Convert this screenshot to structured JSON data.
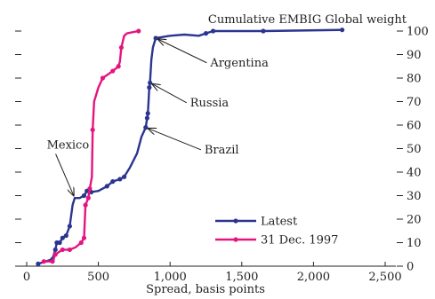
{
  "chart_data": {
    "type": "line",
    "title": "Cumulative EMBIG Global weight",
    "xlabel": "Spread, basis points",
    "ylabel": "",
    "xlim": [
      0,
      2500
    ],
    "ylim": [
      0,
      100
    ],
    "x_ticks": [
      0,
      500,
      1000,
      1500,
      2000,
      2500
    ],
    "x_tick_labels": [
      "0",
      "500",
      "1,000",
      "1,500",
      "2,000",
      "2,500"
    ],
    "y_ticks": [
      0,
      10,
      20,
      30,
      40,
      50,
      60,
      70,
      80,
      90,
      100
    ],
    "y_tick_labels": [
      "0",
      "10",
      "20",
      "30",
      "40",
      "50",
      "60",
      "70",
      "80",
      "90",
      "100"
    ],
    "y_axis_side": "right",
    "grid": false,
    "legend_position": "lower-right",
    "series": [
      {
        "name": "Latest",
        "color": "#2b3590",
        "points": [
          [
            80,
            1
          ],
          [
            180,
            3
          ],
          [
            200,
            7
          ],
          [
            210,
            10
          ],
          [
            230,
            10
          ],
          [
            250,
            12
          ],
          [
            275,
            13
          ],
          [
            300,
            17
          ],
          [
            320,
            26
          ],
          [
            335,
            29
          ],
          [
            370,
            29
          ],
          [
            400,
            30
          ],
          [
            420,
            32
          ],
          [
            450,
            31.5
          ],
          [
            500,
            32
          ],
          [
            560,
            34
          ],
          [
            600,
            36
          ],
          [
            650,
            37
          ],
          [
            680,
            38
          ],
          [
            720,
            42
          ],
          [
            770,
            48
          ],
          [
            800,
            55
          ],
          [
            830,
            59
          ],
          [
            840,
            63
          ],
          [
            845,
            65
          ],
          [
            850,
            70
          ],
          [
            855,
            76
          ],
          [
            860,
            78
          ],
          [
            870,
            88
          ],
          [
            880,
            93
          ],
          [
            900,
            97
          ],
          [
            1000,
            98
          ],
          [
            1100,
            98.5
          ],
          [
            1200,
            98
          ],
          [
            1250,
            99
          ],
          [
            1300,
            100
          ],
          [
            1650,
            100
          ],
          [
            2200,
            100.5
          ]
        ],
        "markers": [
          [
            80,
            1
          ],
          [
            180,
            3
          ],
          [
            200,
            7
          ],
          [
            210,
            10
          ],
          [
            230,
            10
          ],
          [
            250,
            12
          ],
          [
            275,
            13
          ],
          [
            300,
            17
          ],
          [
            400,
            30
          ],
          [
            420,
            32
          ],
          [
            450,
            31.5
          ],
          [
            560,
            34
          ],
          [
            600,
            36
          ],
          [
            650,
            37
          ],
          [
            680,
            38
          ],
          [
            830,
            59
          ],
          [
            840,
            63
          ],
          [
            845,
            65
          ],
          [
            855,
            76
          ],
          [
            860,
            78
          ],
          [
            900,
            97
          ],
          [
            1250,
            99
          ],
          [
            1300,
            100
          ],
          [
            1650,
            100
          ],
          [
            2200,
            100.5
          ]
        ]
      },
      {
        "name": "31 Dec. 1997",
        "color": "#e3157f",
        "points": [
          [
            120,
            2
          ],
          [
            180,
            2
          ],
          [
            200,
            5
          ],
          [
            250,
            7
          ],
          [
            300,
            7
          ],
          [
            340,
            8
          ],
          [
            380,
            10
          ],
          [
            400,
            12
          ],
          [
            410,
            26
          ],
          [
            430,
            29
          ],
          [
            440,
            33
          ],
          [
            455,
            38
          ],
          [
            460,
            58
          ],
          [
            470,
            70
          ],
          [
            500,
            76
          ],
          [
            530,
            80
          ],
          [
            600,
            83
          ],
          [
            640,
            85
          ],
          [
            650,
            87
          ],
          [
            660,
            93
          ],
          [
            680,
            98
          ],
          [
            700,
            99
          ],
          [
            780,
            100
          ]
        ],
        "markers": [
          [
            120,
            2
          ],
          [
            180,
            2
          ],
          [
            200,
            5
          ],
          [
            250,
            7
          ],
          [
            300,
            7
          ],
          [
            380,
            10
          ],
          [
            400,
            12
          ],
          [
            410,
            26
          ],
          [
            430,
            29
          ],
          [
            440,
            33
          ],
          [
            460,
            58
          ],
          [
            530,
            80
          ],
          [
            600,
            83
          ],
          [
            640,
            85
          ],
          [
            660,
            93
          ],
          [
            780,
            100
          ]
        ]
      }
    ],
    "annotations": [
      {
        "text": "Argentina",
        "anchor": [
          900,
          97
        ],
        "label_at": [
          1280,
          85
        ]
      },
      {
        "text": "Russia",
        "anchor": [
          860,
          78
        ],
        "label_at": [
          1140,
          68
        ]
      },
      {
        "text": "Brazil",
        "anchor": [
          830,
          59
        ],
        "label_at": [
          1240,
          48
        ]
      },
      {
        "text": "Mexico",
        "anchor": [
          335,
          29
        ],
        "label_at": [
          140,
          50
        ]
      }
    ]
  }
}
